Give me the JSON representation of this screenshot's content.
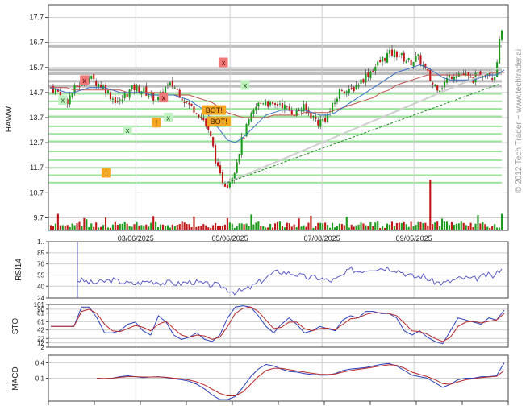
{
  "watermark": "© 2012 Tech Trader ~ www.techtrader.ai",
  "chart_data": [
    {
      "type": "candlestick",
      "ylabel": "HAWW",
      "ylim": [
        9.2,
        18.2
      ],
      "yticks": [
        "17.7",
        "16.7",
        "15.7",
        "14.7",
        "13.7",
        "12.7",
        "11.7",
        "10.7",
        "9.7"
      ],
      "xticks": [
        "03/06/2025",
        "05/06/2025",
        "07/08/2025",
        "09/05/2025"
      ],
      "grid": true,
      "trend_path": [
        14.9,
        14.7,
        14.3,
        14.8,
        15.1,
        15.3,
        15.1,
        14.9,
        14.5,
        14.3,
        14.7,
        14.9,
        14.8,
        14.6,
        14.4,
        14.9,
        15.0,
        14.6,
        14.2,
        14.0,
        13.6,
        12.8,
        11.4,
        11.0,
        11.6,
        12.8,
        13.6,
        14.2,
        14.4,
        14.1,
        14.3,
        14.0,
        13.9,
        14.1,
        13.8,
        13.5,
        13.7,
        14.2,
        14.9,
        14.7,
        15.0,
        15.3,
        15.6,
        15.9,
        16.2,
        16.3,
        16.1,
        15.9,
        16.1,
        15.6,
        15.0,
        14.9,
        15.3,
        15.5,
        15.4,
        15.2,
        15.4,
        15.6,
        15.3,
        17.3
      ],
      "ma_fast": [
        14.9,
        14.8,
        14.7,
        14.7,
        14.8,
        14.9,
        14.9,
        14.9,
        14.8,
        14.7,
        14.7,
        14.7,
        14.7,
        14.6,
        14.6,
        14.6,
        14.6,
        14.5,
        14.4,
        14.2,
        14.0,
        13.6,
        13.2,
        12.8,
        12.7,
        12.9,
        13.2,
        13.5,
        13.8,
        13.9,
        14.0,
        14.0,
        14.0,
        14.0,
        13.9,
        13.8,
        13.8,
        13.9,
        14.1,
        14.3,
        14.5,
        14.7,
        14.9,
        15.1,
        15.3,
        15.5,
        15.6,
        15.7,
        15.8,
        15.7,
        15.5,
        15.3,
        15.2,
        15.2,
        15.2,
        15.2,
        15.3,
        15.4,
        15.4,
        15.6
      ],
      "ma_slow": [
        14.9,
        14.9,
        14.9,
        14.8,
        14.8,
        14.8,
        14.8,
        14.8,
        14.8,
        14.8,
        14.7,
        14.7,
        14.7,
        14.7,
        14.7,
        14.6,
        14.6,
        14.6,
        14.6,
        14.5,
        14.4,
        14.3,
        14.1,
        13.9,
        13.8,
        13.7,
        13.7,
        13.7,
        13.7,
        13.8,
        13.8,
        13.8,
        13.8,
        13.9,
        13.9,
        13.9,
        13.9,
        14.0,
        14.1,
        14.2,
        14.3,
        14.4,
        14.5,
        14.7,
        14.8,
        15.0,
        15.1,
        15.2,
        15.3,
        15.4,
        15.4,
        15.4,
        15.4,
        15.4,
        15.4,
        15.4,
        15.4,
        15.5,
        15.5,
        15.5
      ],
      "horizontal_levels": [
        {
          "value": 16.55,
          "color": "#bdbdbd"
        },
        {
          "value": 15.6,
          "color": "#bdbdbd"
        },
        {
          "value": 15.45,
          "color": "#bdbdbd"
        },
        {
          "value": 15.15,
          "color": "#bdbdbd"
        },
        {
          "value": 14.95,
          "color": "#bdbdbd"
        },
        {
          "value": 14.65,
          "color": "#9be59b"
        },
        {
          "value": 14.35,
          "color": "#9be59b"
        },
        {
          "value": 14.05,
          "color": "#9be59b"
        },
        {
          "value": 13.75,
          "color": "#9be59b"
        },
        {
          "value": 13.35,
          "color": "#9be59b"
        },
        {
          "value": 13.05,
          "color": "#9be59b"
        },
        {
          "value": 12.75,
          "color": "#9be59b"
        },
        {
          "value": 12.35,
          "color": "#9be59b"
        },
        {
          "value": 12.0,
          "color": "#9be59b"
        },
        {
          "value": 11.7,
          "color": "#9be59b"
        },
        {
          "value": 11.4,
          "color": "#9be59b"
        },
        {
          "value": 11.1,
          "color": "#9be59b"
        }
      ],
      "annotations": [
        {
          "text": "x",
          "kind": "sell",
          "i": 14,
          "value": 15.2
        },
        {
          "text": "x",
          "kind": "buy",
          "i": 5,
          "value": 14.4
        },
        {
          "text": "!",
          "kind": "warn",
          "i": 23,
          "value": 11.5
        },
        {
          "text": "x",
          "kind": "buy",
          "i": 32,
          "value": 13.2
        },
        {
          "text": "x",
          "kind": "sell",
          "i": 47,
          "value": 14.5
        },
        {
          "text": "!",
          "kind": "warn",
          "i": 44,
          "value": 13.5
        },
        {
          "text": "x",
          "kind": "buy",
          "i": 49,
          "value": 13.7
        },
        {
          "text": "x",
          "kind": "sell",
          "i": 72,
          "value": 15.9
        },
        {
          "text": "BOT!",
          "kind": "warn",
          "i": 68,
          "value": 14.0
        },
        {
          "text": "BOT!",
          "kind": "warn",
          "i": 70,
          "value": 13.55
        },
        {
          "text": "x",
          "kind": "buy",
          "i": 81,
          "value": 15.0
        }
      ]
    },
    {
      "type": "line",
      "ylabel": "RSI14",
      "ylim": [
        24,
        100
      ],
      "yticks": [
        "1..",
        "85",
        "70",
        "55",
        "40",
        "24"
      ],
      "values": [
        48,
        47,
        44,
        45,
        47,
        48,
        46,
        44,
        43,
        45,
        47,
        46,
        44,
        45,
        43,
        45,
        46,
        44,
        42,
        42,
        40,
        35,
        32,
        34,
        38,
        44,
        50,
        56,
        60,
        58,
        57,
        54,
        51,
        52,
        50,
        47,
        49,
        55,
        63,
        60,
        62,
        64,
        64,
        65,
        63,
        60,
        55,
        52,
        54,
        48,
        45,
        44,
        47,
        50,
        51,
        49,
        52,
        55,
        53,
        66
      ]
    },
    {
      "type": "line",
      "ylabel": "STO",
      "ylim": [
        2,
        101
      ],
      "yticks": [
        "101",
        "90",
        "81",
        "61",
        "42",
        "22",
        "12",
        "2"
      ],
      "series": [
        {
          "values": [
            50,
            50,
            50,
            50,
            95,
            95,
            70,
            35,
            35,
            40,
            55,
            60,
            40,
            30,
            75,
            60,
            30,
            20,
            25,
            35,
            20,
            15,
            30,
            70,
            95,
            98,
            95,
            75,
            50,
            35,
            55,
            70,
            55,
            35,
            40,
            50,
            45,
            40,
            65,
            75,
            70,
            85,
            85,
            80,
            80,
            70,
            40,
            30,
            40,
            25,
            15,
            10,
            40,
            70,
            65,
            60,
            55,
            70,
            65,
            88
          ]
        },
        {
          "values": [
            50,
            50,
            50,
            50,
            85,
            90,
            80,
            55,
            40,
            38,
            45,
            52,
            48,
            40,
            55,
            62,
            45,
            30,
            25,
            30,
            28,
            20,
            25,
            50,
            80,
            92,
            95,
            85,
            65,
            45,
            48,
            60,
            60,
            45,
            40,
            45,
            46,
            42,
            55,
            68,
            70,
            78,
            82,
            82,
            80,
            75,
            58,
            40,
            38,
            32,
            22,
            15,
            25,
            50,
            60,
            62,
            58,
            62,
            65,
            80
          ]
        }
      ]
    },
    {
      "type": "line",
      "ylabel": "MACD",
      "ylim": [
        -0.85,
        0.65
      ],
      "yticks": [
        "0.4",
        "-0.1"
      ],
      "series": [
        {
          "values": [
            null,
            null,
            null,
            null,
            null,
            null,
            -0.1,
            -0.12,
            -0.1,
            -0.05,
            -0.02,
            -0.05,
            -0.08,
            -0.06,
            -0.05,
            -0.08,
            -0.12,
            -0.15,
            -0.2,
            -0.3,
            -0.45,
            -0.65,
            -0.8,
            -0.8,
            -0.7,
            -0.4,
            -0.05,
            0.2,
            0.35,
            0.3,
            0.2,
            0.12,
            0.1,
            0.05,
            0.02,
            0.0,
            0.0,
            0.05,
            0.15,
            0.2,
            0.22,
            0.25,
            0.3,
            0.35,
            0.38,
            0.3,
            0.15,
            0.0,
            -0.05,
            -0.1,
            -0.25,
            -0.4,
            -0.3,
            -0.15,
            -0.1,
            -0.1,
            -0.05,
            -0.05,
            -0.02,
            0.4
          ]
        },
        {
          "values": [
            null,
            null,
            null,
            null,
            null,
            null,
            -0.1,
            -0.11,
            -0.1,
            -0.07,
            -0.05,
            -0.05,
            -0.06,
            -0.06,
            -0.06,
            -0.07,
            -0.1,
            -0.12,
            -0.16,
            -0.22,
            -0.32,
            -0.46,
            -0.6,
            -0.68,
            -0.68,
            -0.55,
            -0.3,
            -0.05,
            0.15,
            0.22,
            0.22,
            0.18,
            0.14,
            0.1,
            0.06,
            0.03,
            0.02,
            0.04,
            0.1,
            0.15,
            0.19,
            0.22,
            0.26,
            0.3,
            0.34,
            0.32,
            0.23,
            0.1,
            0.02,
            -0.05,
            -0.15,
            -0.28,
            -0.3,
            -0.22,
            -0.15,
            -0.12,
            -0.08,
            -0.06,
            -0.04,
            0.15
          ]
        }
      ]
    }
  ]
}
